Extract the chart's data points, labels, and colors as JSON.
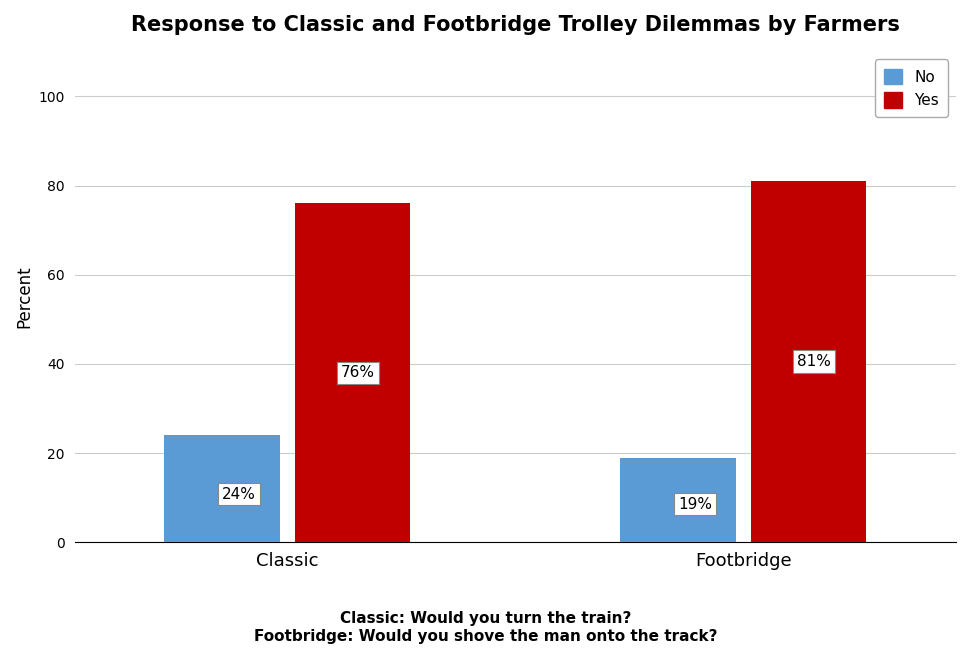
{
  "title": "Response to Classic and Footbridge Trolley Dilemmas by Farmers",
  "categories": [
    "Classic",
    "Footbridge"
  ],
  "no_values": [
    24,
    19
  ],
  "yes_values": [
    76,
    81
  ],
  "no_color": "#5B9BD5",
  "yes_color": "#C00000",
  "ylabel": "Percent",
  "ylim": [
    0,
    110
  ],
  "yticks": [
    0,
    20,
    40,
    60,
    80,
    100
  ],
  "bar_width": 0.38,
  "xlabel_bottom": "Classic: Would you turn the train?\nFootbridge: Would you shove the man onto the track?",
  "legend_labels": [
    "No",
    "Yes"
  ],
  "label_fontsize": 12,
  "title_fontsize": 15,
  "annotation_fontsize": 11,
  "group_centers": [
    1.0,
    2.5
  ],
  "bar_gap": 0.05,
  "background_color": "#FFFFFF"
}
